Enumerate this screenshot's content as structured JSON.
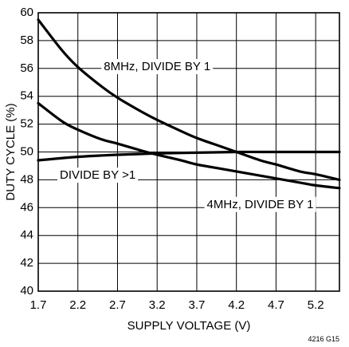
{
  "chart_data": {
    "type": "line",
    "xlabel": "SUPPLY VOLTAGE (V)",
    "ylabel": "DUTY CYCLE (%)",
    "xlim": [
      1.7,
      5.5
    ],
    "ylim": [
      40,
      60
    ],
    "xticks": [
      1.7,
      2.2,
      2.7,
      3.2,
      3.7,
      4.2,
      4.7,
      5.2
    ],
    "xtick_labels": [
      "1.7",
      "2.2",
      "2.7",
      "3.2",
      "3.7",
      "4.2",
      "4.7",
      "5.2"
    ],
    "yticks": [
      40,
      42,
      44,
      46,
      48,
      50,
      52,
      54,
      56,
      58,
      60
    ],
    "ytick_labels": [
      "40",
      "42",
      "44",
      "46",
      "48",
      "50",
      "52",
      "54",
      "56",
      "58",
      "60"
    ],
    "grid": true,
    "series": [
      {
        "name": "8MHz, DIVIDE BY 1",
        "x": [
          1.7,
          2.0,
          2.2,
          2.5,
          2.7,
          3.0,
          3.2,
          3.5,
          3.7,
          4.0,
          4.2,
          4.5,
          4.7,
          5.0,
          5.2,
          5.5
        ],
        "y": [
          59.5,
          57.3,
          56.1,
          54.7,
          53.9,
          52.9,
          52.3,
          51.5,
          51.0,
          50.4,
          50.0,
          49.4,
          49.1,
          48.6,
          48.4,
          48.0
        ]
      },
      {
        "name": "4MHz, DIVIDE BY 1",
        "x": [
          1.7,
          2.0,
          2.2,
          2.5,
          2.7,
          3.0,
          3.2,
          3.5,
          3.7,
          4.0,
          4.2,
          4.5,
          4.7,
          5.0,
          5.2,
          5.5
        ],
        "y": [
          53.5,
          52.2,
          51.6,
          50.9,
          50.6,
          50.1,
          49.8,
          49.4,
          49.1,
          48.8,
          48.6,
          48.3,
          48.1,
          47.8,
          47.6,
          47.4
        ]
      },
      {
        "name": "DIVIDE BY >1",
        "x": [
          1.7,
          2.2,
          2.7,
          3.2,
          3.7,
          4.2,
          4.7,
          5.2,
          5.5
        ],
        "y": [
          49.4,
          49.65,
          49.8,
          49.9,
          49.95,
          50.0,
          50.0,
          50.0,
          50.0
        ]
      }
    ],
    "annotations": [
      {
        "text": "8MHz, DIVIDE BY 1",
        "x": 3.2,
        "y": 56.1
      },
      {
        "text": "DIVIDE BY >1",
        "x": 2.45,
        "y": 48.3
      },
      {
        "text": "4MHz, DIVIDE BY 1",
        "x": 4.5,
        "y": 46.2
      }
    ],
    "figure_code": "4216 G15"
  }
}
